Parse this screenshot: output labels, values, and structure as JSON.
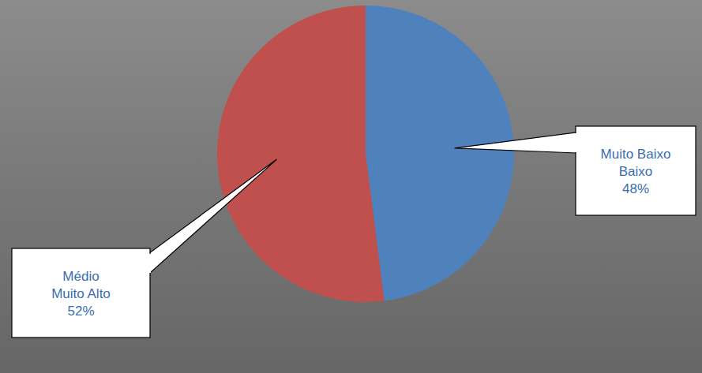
{
  "chart_data": {
    "type": "pie",
    "categories": [
      "Muito Baixo\nBaixo",
      "Médio\nMuito Alto"
    ],
    "values": [
      48,
      52
    ],
    "value_labels": [
      "48%",
      "52%"
    ],
    "colors": [
      "#4f81bd",
      "#c0504d"
    ],
    "data_labels": true
  }
}
